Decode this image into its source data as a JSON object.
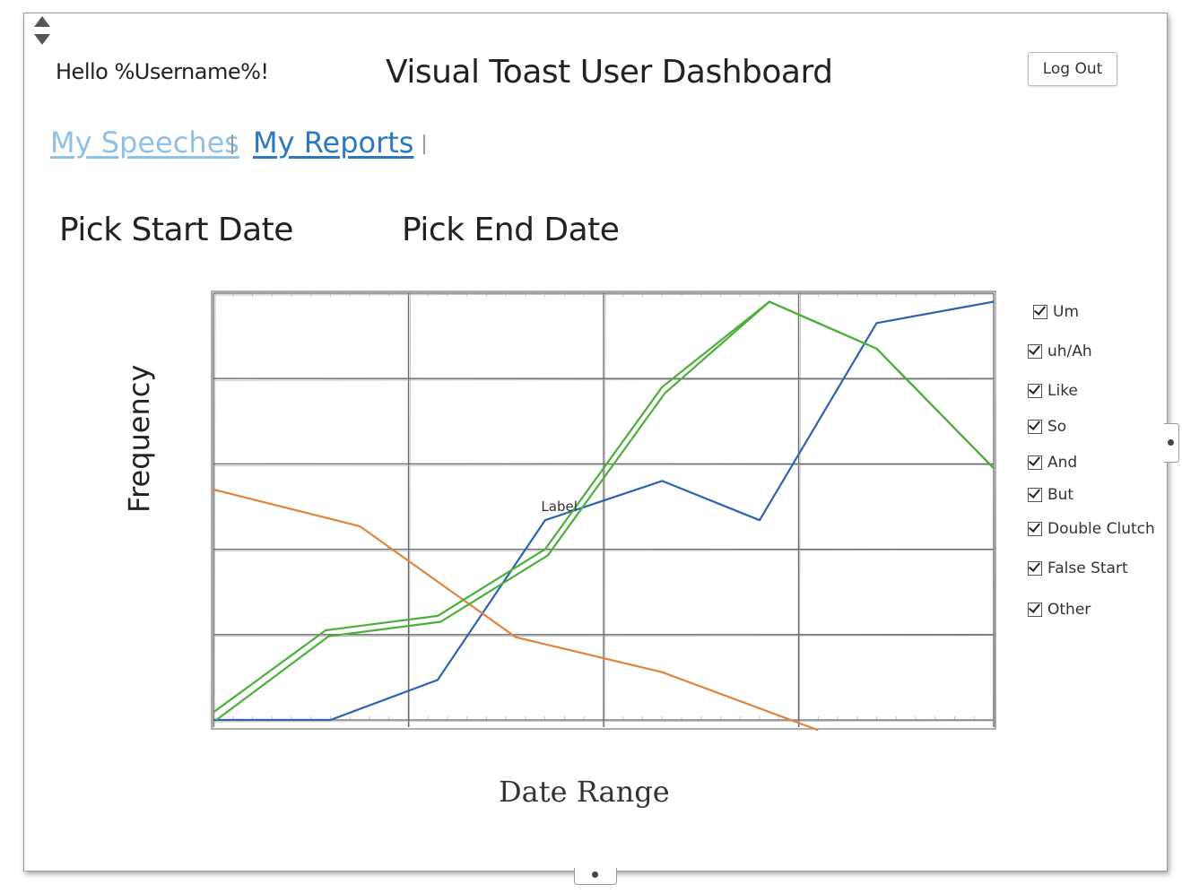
{
  "header": {
    "greeting": "Hello %Username%!",
    "title": "Visual Toast User Dashboard",
    "logout_label": "Log Out"
  },
  "nav": {
    "items": [
      {
        "label": "My Speeches"
      },
      {
        "label": "My Reports"
      }
    ]
  },
  "date_pickers": {
    "start_label": "Pick Start Date",
    "end_label": "Pick End Date"
  },
  "legend": {
    "items": [
      {
        "label": "Um",
        "checked": true
      },
      {
        "label": "uh/Ah",
        "checked": true
      },
      {
        "label": "Like",
        "checked": true
      },
      {
        "label": "So",
        "checked": true
      },
      {
        "label": "And",
        "checked": true
      },
      {
        "label": "But",
        "checked": true
      },
      {
        "label": "Double Clutch",
        "checked": true
      },
      {
        "label": "False Start",
        "checked": true
      },
      {
        "label": "Other",
        "checked": true
      }
    ]
  },
  "chart_data": {
    "type": "line",
    "title": "",
    "xlabel": "Date Range",
    "ylabel": "Frequency",
    "xlim": [
      0,
      8
    ],
    "ylim": [
      0,
      5
    ],
    "grid": true,
    "annotation": {
      "text": "Label",
      "x": 3.36,
      "y": 2.45
    },
    "series": [
      {
        "color": "#2d63b0",
        "x": [
          0,
          1.2,
          2.3,
          3.4,
          4.6,
          5.6,
          6.8,
          8
        ],
        "y": [
          0,
          0,
          0.47,
          2.34,
          2.8,
          2.34,
          4.65,
          4.9
        ]
      },
      {
        "color": "#e0843a",
        "x": [
          0,
          1.5,
          3.1,
          4.6,
          6.2
        ],
        "y": [
          2.7,
          2.27,
          0.97,
          0.56,
          -0.12
        ]
      },
      {
        "color": "#4caf3a",
        "x": [
          0,
          1.15,
          2.3,
          3.4,
          4.6,
          5.7,
          6.8,
          8
        ],
        "y": [
          0.09,
          1.05,
          1.22,
          2.0,
          3.9,
          4.9,
          4.35,
          2.95
        ]
      },
      {
        "color": "#4caf3a",
        "x": [
          0.03,
          1.18,
          2.33,
          3.43,
          4.63,
          5.7,
          6.8,
          8
        ],
        "y": [
          0,
          0.98,
          1.15,
          1.93,
          3.83,
          4.9,
          4.35,
          2.95
        ]
      }
    ]
  }
}
